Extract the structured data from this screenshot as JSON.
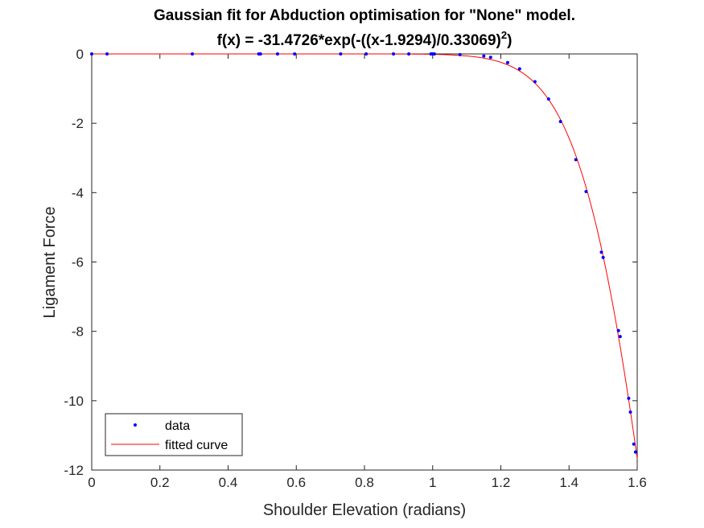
{
  "chart_data": {
    "type": "scatter",
    "title": "Gaussian fit for Abduction optimisation for \"None\" model.",
    "title_line2_prefix": "f(x) = -31.4726*exp(-((x-1.9294)/0.33069)",
    "title_line2_superscript": "2",
    "title_line2_suffix": ")",
    "xlabel": "Shoulder Elevation (radians)",
    "ylabel": "Ligament Force",
    "xlim": [
      0,
      1.6
    ],
    "ylim": [
      -12,
      0
    ],
    "xticks": [
      0,
      0.2,
      0.4,
      0.6,
      0.8,
      1,
      1.2,
      1.4,
      1.6
    ],
    "xtick_labels": [
      "0",
      "0.2",
      "0.4",
      "0.6",
      "0.8",
      "1",
      "1.2",
      "1.4",
      "1.6"
    ],
    "yticks": [
      0,
      -2,
      -4,
      -6,
      -8,
      -10,
      -12
    ],
    "ytick_labels": [
      "0",
      "-2",
      "-4",
      "-6",
      "-8",
      "-10",
      "-12"
    ],
    "grid": false,
    "legend_placement": "bottom-left",
    "series": [
      {
        "name": "data",
        "kind": "markers",
        "color": "#0000ff",
        "x": [
          0.0,
          0.045,
          0.295,
          0.49,
          0.495,
          0.545,
          0.595,
          0.73,
          0.805,
          0.885,
          0.93,
          0.995,
          1.0,
          1.005,
          1.08,
          1.15,
          1.17,
          1.22,
          1.255,
          1.3,
          1.34,
          1.375,
          1.42,
          1.45,
          1.495,
          1.5,
          1.545,
          1.55,
          1.575,
          1.58,
          1.59,
          1.595
        ],
        "y": [
          0.0,
          0.0,
          0.0,
          0.0,
          0.0,
          0.0,
          0.0,
          0.0,
          0.0,
          0.0,
          0.0,
          0.0,
          0.0,
          0.0,
          -0.02,
          -0.06,
          -0.1,
          -0.25,
          -0.43,
          -0.8,
          -1.3,
          -1.95,
          -3.05,
          -3.97,
          -5.72,
          -5.87,
          -7.98,
          -8.15,
          -9.93,
          -10.33,
          -11.25,
          -11.48
        ]
      },
      {
        "name": "fitted curve",
        "kind": "line",
        "color": "#ff0000",
        "function": {
          "family": "gaussian",
          "a": -31.4726,
          "b": 1.9294,
          "c": 0.33069
        }
      }
    ]
  }
}
